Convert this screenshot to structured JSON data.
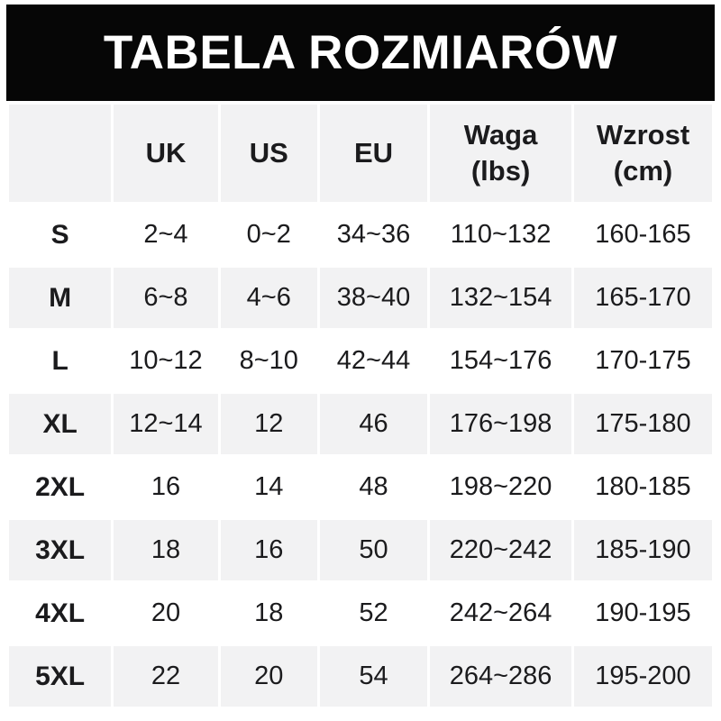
{
  "title": "TABELA ROZMIARÓW",
  "colors": {
    "title_bar_bg": "#060606",
    "title_text": "#ffffff",
    "alt_row_bg": "#f2f2f3",
    "cell_text": "#1b1b1d",
    "page_bg": "#ffffff"
  },
  "header_lines": [
    [
      "",
      ""
    ],
    [
      "UK",
      ""
    ],
    [
      "US",
      ""
    ],
    [
      "EU",
      ""
    ],
    [
      "Waga",
      "(lbs)"
    ],
    [
      "Wzrost",
      "(cm)"
    ]
  ],
  "chart_data": {
    "type": "table",
    "title": "TABELA ROZMIARÓW",
    "columns": [
      "",
      "UK",
      "US",
      "EU",
      "Waga (lbs)",
      "Wzrost (cm)"
    ],
    "rows": [
      [
        "S",
        "2~4",
        "0~2",
        "34~36",
        "110~132",
        "160-165"
      ],
      [
        "M",
        "6~8",
        "4~6",
        "38~40",
        "132~154",
        "165-170"
      ],
      [
        "L",
        "10~12",
        "8~10",
        "42~44",
        "154~176",
        "170-175"
      ],
      [
        "XL",
        "12~14",
        "12",
        "46",
        "176~198",
        "175-180"
      ],
      [
        "2XL",
        "16",
        "14",
        "48",
        "198~220",
        "180-185"
      ],
      [
        "3XL",
        "18",
        "16",
        "50",
        "220~242",
        "185-190"
      ],
      [
        "4XL",
        "20",
        "18",
        "52",
        "242~264",
        "190-195"
      ],
      [
        "5XL",
        "22",
        "20",
        "54",
        "264~286",
        "195-200"
      ]
    ]
  }
}
